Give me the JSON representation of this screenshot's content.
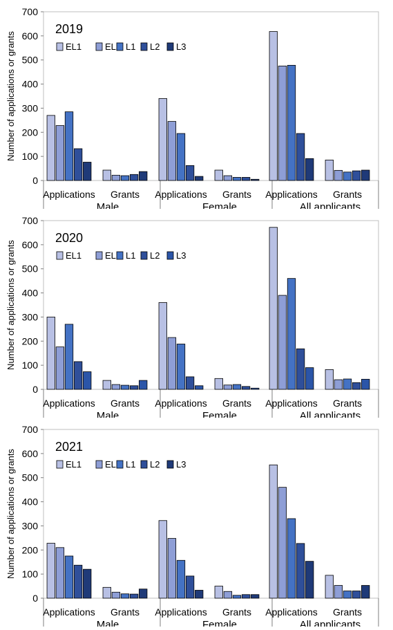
{
  "chart_data": [
    {
      "type": "bar",
      "panel_label": "2019",
      "ylabel": "Number of applications or grants",
      "ylim": [
        0,
        700
      ],
      "yticks": [
        0,
        100,
        200,
        300,
        400,
        500,
        600,
        700
      ],
      "groups": [
        "Male",
        "Female",
        "All applicants"
      ],
      "subcategories": [
        "Applications",
        "Grants"
      ],
      "categories": [
        "Male Applications",
        "Male Grants",
        "Female Applications",
        "Female Grants",
        "All applicants Applications",
        "All applicants Grants"
      ],
      "legend_position": "top-left",
      "series": [
        {
          "name": "EL1",
          "color": "#b8c0e4",
          "values": [
            270,
            43,
            340,
            43,
            618,
            85
          ]
        },
        {
          "name": "EL2",
          "color": "#8e9ed6",
          "values": [
            228,
            22,
            245,
            20,
            475,
            42
          ]
        },
        {
          "name": "L1",
          "color": "#4472c4",
          "values": [
            285,
            20,
            195,
            13,
            478,
            35
          ]
        },
        {
          "name": "L2",
          "color": "#2f4f9a",
          "values": [
            132,
            25,
            62,
            13,
            195,
            40
          ]
        },
        {
          "name": "L3",
          "color": "#1f3a78",
          "values": [
            76,
            37,
            17,
            5,
            91,
            43
          ]
        }
      ]
    },
    {
      "type": "bar",
      "panel_label": "2020",
      "ylabel": "Number of applications or grants",
      "ylim": [
        0,
        700
      ],
      "yticks": [
        0,
        100,
        200,
        300,
        400,
        500,
        600,
        700
      ],
      "groups": [
        "Male",
        "Female",
        "All applicants"
      ],
      "subcategories": [
        "Applications",
        "Grants"
      ],
      "categories": [
        "Male Applications",
        "Male Grants",
        "Female Applications",
        "Female Grants",
        "All applicants Applications",
        "All applicants Grants"
      ],
      "legend_position": "top-left",
      "series": [
        {
          "name": "EL1",
          "color": "#b8c0e4",
          "values": [
            300,
            37,
            360,
            45,
            672,
            82
          ]
        },
        {
          "name": "EL2",
          "color": "#8e9ed6",
          "values": [
            176,
            20,
            215,
            18,
            390,
            40
          ]
        },
        {
          "name": "L1",
          "color": "#4472c4",
          "values": [
            270,
            17,
            188,
            20,
            460,
            43
          ]
        },
        {
          "name": "L2",
          "color": "#2f4f9a",
          "values": [
            115,
            15,
            52,
            12,
            168,
            28
          ]
        },
        {
          "name": "L3",
          "color": "#2b55a8",
          "values": [
            73,
            37,
            15,
            5,
            90,
            42
          ]
        }
      ]
    },
    {
      "type": "bar",
      "panel_label": "2021",
      "ylabel": "Number of applications or grants",
      "ylim": [
        0,
        700
      ],
      "yticks": [
        0,
        100,
        200,
        300,
        400,
        500,
        600,
        700
      ],
      "groups": [
        "Male",
        "Female",
        "All applicants"
      ],
      "subcategories": [
        "Applications",
        "Grants"
      ],
      "categories": [
        "Male Applications",
        "Male Grants",
        "Female Applications",
        "Female Grants",
        "All applicants Applications",
        "All applicants Grants"
      ],
      "legend_position": "top-left",
      "series": [
        {
          "name": "EL1",
          "color": "#b8c0e4",
          "values": [
            228,
            45,
            322,
            50,
            553,
            95
          ]
        },
        {
          "name": "EL2",
          "color": "#8e9ed6",
          "values": [
            210,
            25,
            248,
            28,
            460,
            53
          ]
        },
        {
          "name": "L1",
          "color": "#4472c4",
          "values": [
            175,
            18,
            157,
            12,
            330,
            30
          ]
        },
        {
          "name": "L2",
          "color": "#2f4f9a",
          "values": [
            137,
            17,
            92,
            15,
            227,
            30
          ]
        },
        {
          "name": "L3",
          "color": "#1f3a78",
          "values": [
            120,
            38,
            33,
            15,
            153,
            53
          ]
        }
      ]
    }
  ]
}
